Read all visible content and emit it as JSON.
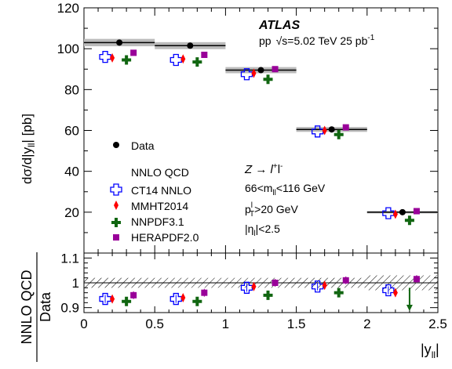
{
  "chart_data": [
    {
      "type": "scatter",
      "ylabel": "dσ/d|y_ll| [pb]",
      "xlabel": "",
      "xlim": [
        0,
        2.5
      ],
      "ylim": [
        0,
        120
      ],
      "yticks": [
        20,
        40,
        60,
        80,
        100,
        120
      ],
      "bins": [
        [
          0,
          0.5
        ],
        [
          0.5,
          1.0
        ],
        [
          1.0,
          1.5
        ],
        [
          1.5,
          2.0
        ],
        [
          2.0,
          2.5
        ]
      ],
      "experiment": "ATLAS",
      "conditions": "pp √s=5.02 TeV  25 pb⁻¹",
      "process": "Z → l⁺l⁻",
      "cuts": [
        "66<m_ll<116 GeV",
        "p_T^l>20 GeV",
        "|η_l|<2.5"
      ],
      "legend_header": "NNLO QCD",
      "data": {
        "name": "Data",
        "x": [
          0.25,
          0.75,
          1.25,
          1.75,
          2.25
        ],
        "values": [
          103.0,
          101.5,
          89.5,
          60.5,
          20.0
        ],
        "uncertainty": [
          1.8,
          1.7,
          1.5,
          1.2,
          0.6
        ],
        "color": "#000000"
      },
      "series": [
        {
          "name": "CT14 NNLO",
          "x": [
            0.15,
            0.65,
            1.15,
            1.65,
            2.15
          ],
          "values": [
            96.0,
            94.5,
            87.5,
            59.5,
            19.5
          ],
          "color": "#0000ff",
          "marker": "open-cross"
        },
        {
          "name": "MMHT2014",
          "x": [
            0.2,
            0.7,
            1.2,
            1.7,
            2.2
          ],
          "values": [
            95.5,
            95.0,
            88.0,
            60.0,
            19.0
          ],
          "color": "#ff0000",
          "marker": "diamond"
        },
        {
          "name": "NNPDF3.1",
          "x": [
            0.3,
            0.8,
            1.3,
            1.8,
            2.3
          ],
          "values": [
            94.5,
            93.5,
            85.0,
            58.0,
            16.0
          ],
          "color": "#116611",
          "marker": "cross"
        },
        {
          "name": "HERAPDF2.0",
          "x": [
            0.35,
            0.85,
            1.35,
            1.85,
            2.35
          ],
          "values": [
            98.0,
            97.0,
            90.0,
            61.5,
            20.5
          ],
          "color": "#990099",
          "marker": "square"
        }
      ]
    },
    {
      "type": "scatter",
      "ylabel": "NNLO QCD / Data",
      "xlabel": "|y_ll|",
      "xlim": [
        0,
        2.5
      ],
      "ylim": [
        0.88,
        1.12
      ],
      "xticks": [
        0,
        0.5,
        1,
        1.5,
        2,
        2.5
      ],
      "yticks": [
        0.9,
        1,
        1.1
      ],
      "band_uncertainty": [
        0.02,
        0.02,
        0.02,
        0.02,
        0.03
      ],
      "series": [
        {
          "name": "CT14 NNLO",
          "x": [
            0.15,
            0.65,
            1.15,
            1.65,
            2.15
          ],
          "values": [
            0.935,
            0.935,
            0.98,
            0.985,
            0.97
          ]
        },
        {
          "name": "MMHT2014",
          "x": [
            0.2,
            0.7,
            1.2,
            1.7,
            2.2
          ],
          "values": [
            0.935,
            0.94,
            0.985,
            0.99,
            0.96
          ]
        },
        {
          "name": "NNPDF3.1",
          "x": [
            0.3,
            0.8,
            1.3,
            1.8,
            2.3
          ],
          "values": [
            0.925,
            0.925,
            0.95,
            0.96,
            0.88
          ],
          "arrow_below": [
            false,
            false,
            false,
            false,
            true
          ]
        },
        {
          "name": "HERAPDF2.0",
          "x": [
            0.35,
            0.85,
            1.35,
            1.85,
            2.35
          ],
          "values": [
            0.95,
            0.96,
            1.0,
            1.01,
            1.015
          ]
        }
      ]
    }
  ],
  "labels": {
    "atlas": "ATLAS",
    "pp": "pp",
    "sqrt_s": "√s=5.02 TeV  25 pb",
    "lumi_exp": "-1",
    "ylabel_main": "dσ/d|y",
    "ylabel_main_sub": "ll",
    "ylabel_main_tail": "| [pb]",
    "ratio_num": "NNLO QCD",
    "ratio_den": "Data",
    "xlabel": "|y",
    "xlabel_sub": "ll",
    "xlabel_tail": "|",
    "z_process": "Z → l",
    "z_plus": "+",
    "z_l": "l",
    "z_minus": "-",
    "cut_mass_a": "66<m",
    "cut_mass_sub": "ll",
    "cut_mass_b": "<116 GeV",
    "cut_pt_a": "p",
    "cut_pt_sup": "l",
    "cut_pt_sub": "T",
    "cut_pt_b": ">20 GeV",
    "cut_eta_a": "|η",
    "cut_eta_sub": "l",
    "cut_eta_b": "|<2.5",
    "legend_data": "Data",
    "legend_header": "NNLO QCD",
    "legend_ct14": "CT14 NNLO",
    "legend_mmht": "MMHT2014",
    "legend_nnpdf": "NNPDF3.1",
    "legend_hera": "HERAPDF2.0"
  }
}
